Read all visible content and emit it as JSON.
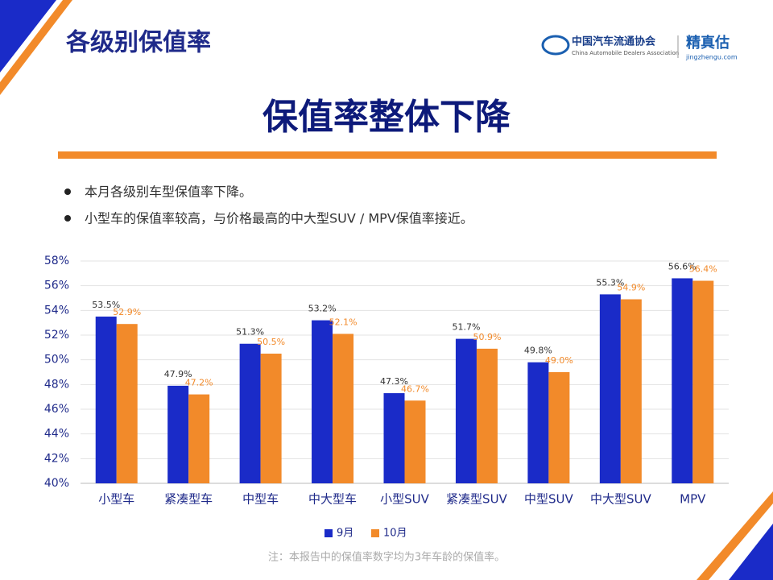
{
  "page": {
    "title": "各级别保值率",
    "logo_cn": "中国汽车流通协会",
    "logo_en": "China Automobile Dealers Association",
    "brand": "精真估",
    "brand_url": "jingzhengu.com",
    "headline": "保值率整体下降",
    "bullets": [
      "本月各级别车型保值率下降。",
      "小型车的保值率较高，与价格最高的中大型SUV / MPV保值率接近。"
    ],
    "note": "注：本报告中的保值率数字均为3年车龄的保值率。"
  },
  "chart_data": {
    "type": "bar",
    "categories": [
      "小型车",
      "紧凑型车",
      "中型车",
      "中大型车",
      "小型SUV",
      "紧凑型SUV",
      "中型SUV",
      "中大型SUV",
      "MPV"
    ],
    "series": [
      {
        "name": "9月",
        "color": "#1a2bc8",
        "values": [
          53.5,
          47.9,
          51.3,
          53.2,
          47.3,
          51.7,
          49.8,
          55.3,
          56.6
        ],
        "value_labels": [
          "53.5%",
          "47.9%",
          "51.3%",
          "53.2%",
          "47.3%",
          "51.7%",
          "49.8%",
          "55.3%",
          "56.6%"
        ]
      },
      {
        "name": "10月",
        "color": "#f28a2a",
        "values": [
          52.9,
          47.2,
          50.5,
          52.1,
          46.7,
          50.9,
          49.0,
          54.9,
          56.4
        ],
        "value_labels": [
          "52.9%",
          "47.2%",
          "50.5%",
          "52.1%",
          "46.7%",
          "50.9%",
          "49.0%",
          "54.9%",
          "56.4%"
        ]
      }
    ],
    "ylim": [
      40,
      58
    ],
    "yticks": [
      {
        "value": 40,
        "label": "40%"
      },
      {
        "value": 42,
        "label": "42%"
      },
      {
        "value": 44,
        "label": "44%"
      },
      {
        "value": 46,
        "label": "46%"
      },
      {
        "value": 48,
        "label": "48%"
      },
      {
        "value": 50,
        "label": "50%"
      },
      {
        "value": 52,
        "label": "52%"
      },
      {
        "value": 54,
        "label": "54%"
      },
      {
        "value": 56,
        "label": "56%"
      },
      {
        "value": 58,
        "label": "58%"
      }
    ],
    "grid": true,
    "legend": "bottom"
  }
}
